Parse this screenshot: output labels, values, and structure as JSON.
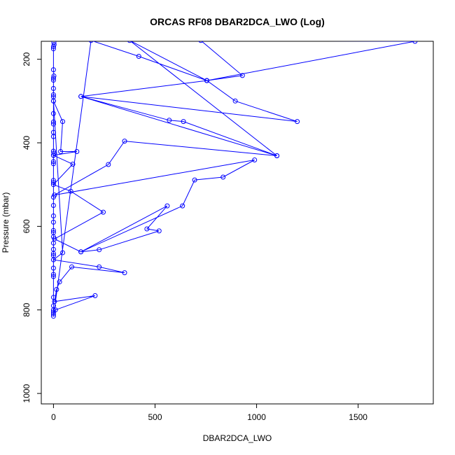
{
  "chart_data": {
    "type": "line",
    "title": "ORCAS RF08 DBAR2DCA_LWO (Log)",
    "xlabel": "DBAR2DCA_LWO",
    "ylabel": "Pressure (mbar)",
    "xlim": [
      -60,
      1870
    ],
    "ylim": [
      1025,
      157
    ],
    "y_inverted": true,
    "grid": false,
    "x_ticks": [
      0,
      500,
      1000,
      1500
    ],
    "y_ticks": [
      200,
      400,
      600,
      800,
      1000
    ],
    "colors": {
      "series": "#0000ff",
      "axes": "#000000"
    },
    "series": [
      {
        "marker": "open-circle",
        "points": [
          [
            2,
            160
          ],
          [
            3,
            165
          ],
          [
            0,
            170
          ],
          [
            0,
            175
          ],
          [
            0,
            225
          ],
          [
            2,
            240
          ],
          [
            0,
            245
          ],
          [
            0,
            250
          ],
          [
            0,
            270
          ],
          [
            0,
            285
          ],
          [
            0,
            290
          ],
          [
            0,
            300
          ],
          [
            0,
            330
          ],
          [
            0,
            350
          ],
          [
            0,
            355
          ],
          [
            0,
            375
          ],
          [
            0,
            385
          ],
          [
            0,
            420
          ],
          [
            2,
            425
          ],
          [
            0,
            430
          ],
          [
            0,
            445
          ],
          [
            0,
            450
          ],
          [
            0,
            490
          ],
          [
            0,
            495
          ],
          [
            0,
            530
          ],
          [
            0,
            550
          ],
          [
            0,
            575
          ],
          [
            0,
            590
          ],
          [
            0,
            610
          ],
          [
            0,
            615
          ],
          [
            0,
            625
          ],
          [
            0,
            640
          ],
          [
            0,
            655
          ],
          [
            0,
            665
          ],
          [
            0,
            670
          ],
          [
            0,
            700
          ],
          [
            0,
            715
          ],
          [
            0,
            720
          ],
          [
            0,
            770
          ],
          [
            0,
            790
          ],
          [
            0,
            800
          ],
          [
            0,
            805
          ],
          [
            0,
            810
          ],
          [
            0,
            815
          ],
          [
            185,
            155
          ],
          [
            420,
            193
          ],
          [
            755,
            251
          ],
          [
            1780,
            157
          ],
          [
            725,
            155
          ],
          [
            930,
            239
          ],
          [
            755,
            251
          ],
          [
            135,
            289
          ],
          [
            1200,
            349
          ],
          [
            895,
            300
          ],
          [
            755,
            251
          ],
          [
            375,
            155
          ],
          [
            1100,
            431
          ],
          [
            135,
            289
          ],
          [
            570,
            346
          ],
          [
            640,
            349
          ],
          [
            1100,
            431
          ],
          [
            350,
            396
          ],
          [
            270,
            452
          ],
          [
            5,
            525
          ],
          [
            990,
            441
          ],
          [
            835,
            482
          ],
          [
            695,
            489
          ],
          [
            635,
            551
          ],
          [
            135,
            661
          ],
          [
            560,
            551
          ],
          [
            460,
            606
          ],
          [
            520,
            611
          ],
          [
            225,
            656
          ],
          [
            135,
            661
          ],
          [
            5,
            630
          ],
          [
            245,
            566
          ],
          [
            85,
            516
          ],
          [
            0,
            500
          ],
          [
            95,
            451
          ],
          [
            0,
            430
          ],
          [
            115,
            421
          ],
          [
            35,
            421
          ],
          [
            45,
            349
          ],
          [
            0,
            300
          ],
          [
            45,
            663
          ],
          [
            0,
            680
          ],
          [
            225,
            697
          ],
          [
            350,
            711
          ],
          [
            90,
            697
          ],
          [
            30,
            733
          ],
          [
            15,
            751
          ],
          [
            5,
            780
          ],
          [
            205,
            766
          ],
          [
            10,
            800
          ]
        ]
      }
    ]
  }
}
